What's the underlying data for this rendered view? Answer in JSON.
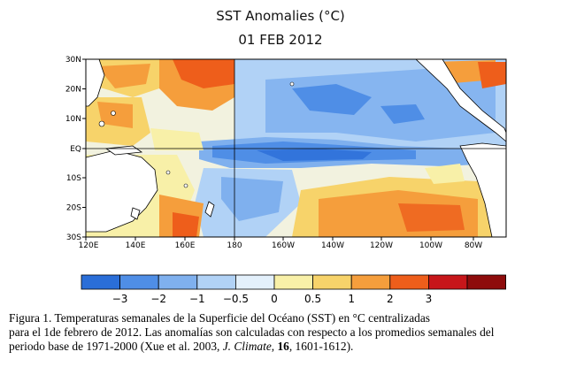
{
  "header": {
    "title": "SST Anomalies (°C)",
    "date": "01 FEB 2012"
  },
  "map": {
    "lat_labels": [
      "30N",
      "20N",
      "10N",
      "EQ",
      "10S",
      "20S",
      "30S"
    ],
    "lon_labels": [
      "120E",
      "140E",
      "160E",
      "180",
      "160W",
      "140W",
      "120W",
      "100W",
      "80W"
    ],
    "lat_range": [
      -30,
      30
    ],
    "lon_range": [
      "120E",
      "70W"
    ]
  },
  "colorbar": {
    "bins": [
      {
        "color": "#2a6ed8"
      },
      {
        "color": "#4f8ee6"
      },
      {
        "color": "#7fb0ee"
      },
      {
        "color": "#b1d2f6"
      },
      {
        "color": "#e3f0fb"
      },
      {
        "color": "#f8f0a8"
      },
      {
        "color": "#f7d36a"
      },
      {
        "color": "#f59e3c"
      },
      {
        "color": "#ee5e1b"
      },
      {
        "color": "#c7161a"
      },
      {
        "color": "#8e0c0c"
      }
    ],
    "tick_labels": [
      "−3",
      "−2",
      "−1",
      "−0.5",
      "0",
      "0.5",
      "1",
      "2",
      "3"
    ]
  },
  "caption": {
    "line1": "Figura 1. Temperaturas semanales de la Superficie del Océano (SST) en °C centralizadas",
    "line2": "para el 1de febrero de 2012. Las anomalías son calculadas con respecto a los promedios semanales del",
    "line3_a": "periodo base de 1971-2000 (Xue et al. 2003, ",
    "line3_journal": "J. Climate",
    "line3_b": ", ",
    "line3_volume": "16",
    "line3_c": ", 1601-1612)."
  }
}
